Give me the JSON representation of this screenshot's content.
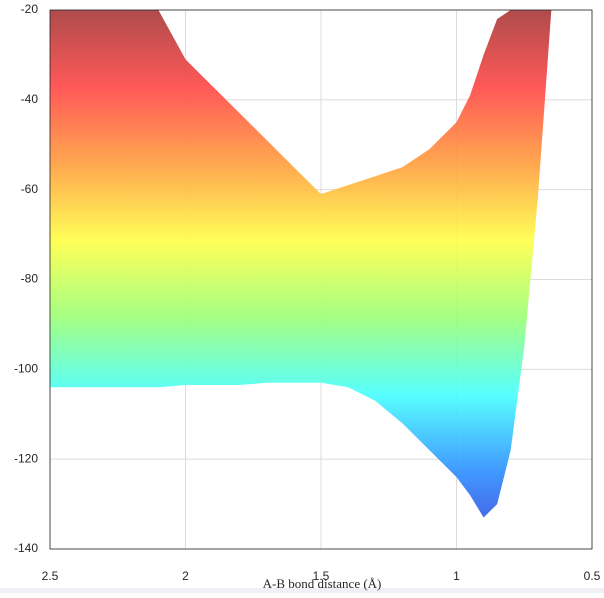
{
  "chart_data": {
    "type": "band",
    "xlabel": "A-B bond distance (Å)",
    "xlim": [
      2.5,
      0.5
    ],
    "xticks": [
      2.5,
      2,
      1.5,
      1,
      0.5
    ],
    "ylim": [
      -140,
      -20
    ],
    "yticks": [
      -140,
      -120,
      -100,
      -80,
      -60,
      -40,
      -20
    ],
    "grid": true,
    "colormap": [
      "#a83c3c",
      "#ff4a4a",
      "#ffa040",
      "#ffff4a",
      "#9cff7a",
      "#4affff",
      "#3090ff",
      "#3a3ad8"
    ],
    "x": [
      2.5,
      2.4,
      2.3,
      2.2,
      2.1,
      2.0,
      1.9,
      1.8,
      1.7,
      1.6,
      1.5,
      1.4,
      1.3,
      1.2,
      1.1,
      1.0,
      0.95,
      0.9,
      0.85,
      0.8,
      0.75,
      0.7,
      0.65
    ],
    "series": [
      {
        "values": [
          -20,
          -20,
          -20,
          -20,
          -20,
          -31,
          -37,
          -43,
          -49,
          -55,
          -61,
          -59,
          -57,
          -55,
          -51,
          -45,
          -39,
          -30,
          -22,
          -20,
          -20,
          -20,
          -20
        ]
      },
      {
        "values": [
          -104,
          -104,
          -104,
          -104,
          -104,
          -103.5,
          -103.5,
          -103.5,
          -103,
          -103,
          -103,
          -104,
          -107,
          -112,
          -118,
          -124,
          -128,
          -133,
          -130,
          -118,
          -95,
          -62,
          -20
        ]
      }
    ]
  }
}
